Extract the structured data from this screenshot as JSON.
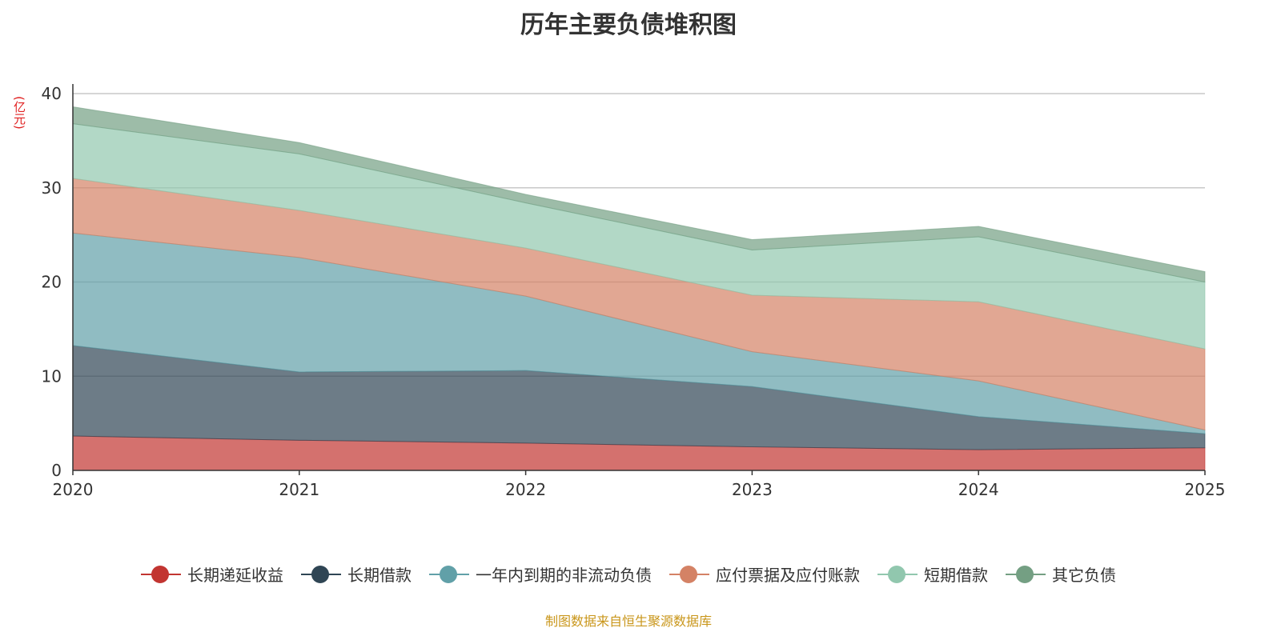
{
  "chart_data": {
    "type": "area",
    "stacked": true,
    "title": "历年主要负债堆积图",
    "ylabel": "(亿元)",
    "xlabel": "",
    "categories": [
      "2020",
      "2021",
      "2022",
      "2023",
      "2024",
      "2025"
    ],
    "ylim": [
      0,
      40
    ],
    "yticks": [
      0,
      10,
      20,
      30,
      40
    ],
    "grid": true,
    "legend_position": "bottom",
    "series": [
      {
        "name": "长期递延收益",
        "color": "#c23531",
        "values": [
          3.65,
          3.2,
          2.9,
          2.5,
          2.2,
          2.4
        ]
      },
      {
        "name": "长期借款",
        "color": "#2f4554",
        "values": [
          9.6,
          7.25,
          7.7,
          6.4,
          3.5,
          1.5
        ]
      },
      {
        "name": "一年内到期的非流动负债",
        "color": "#61a0a8",
        "values": [
          11.95,
          12.15,
          7.9,
          3.7,
          3.8,
          0.4
        ]
      },
      {
        "name": "应付票据及应付账款",
        "color": "#d48265",
        "values": [
          5.8,
          5.0,
          5.1,
          6.0,
          8.4,
          8.6
        ]
      },
      {
        "name": "短期借款",
        "color": "#91c7ae",
        "values": [
          5.8,
          6.0,
          4.8,
          4.8,
          6.9,
          7.1
        ]
      },
      {
        "name": "其它负债",
        "color": "#749f83",
        "values": [
          1.8,
          1.2,
          0.9,
          1.1,
          1.1,
          1.1
        ]
      }
    ]
  },
  "source": "制图数据来自恒生聚源数据库"
}
